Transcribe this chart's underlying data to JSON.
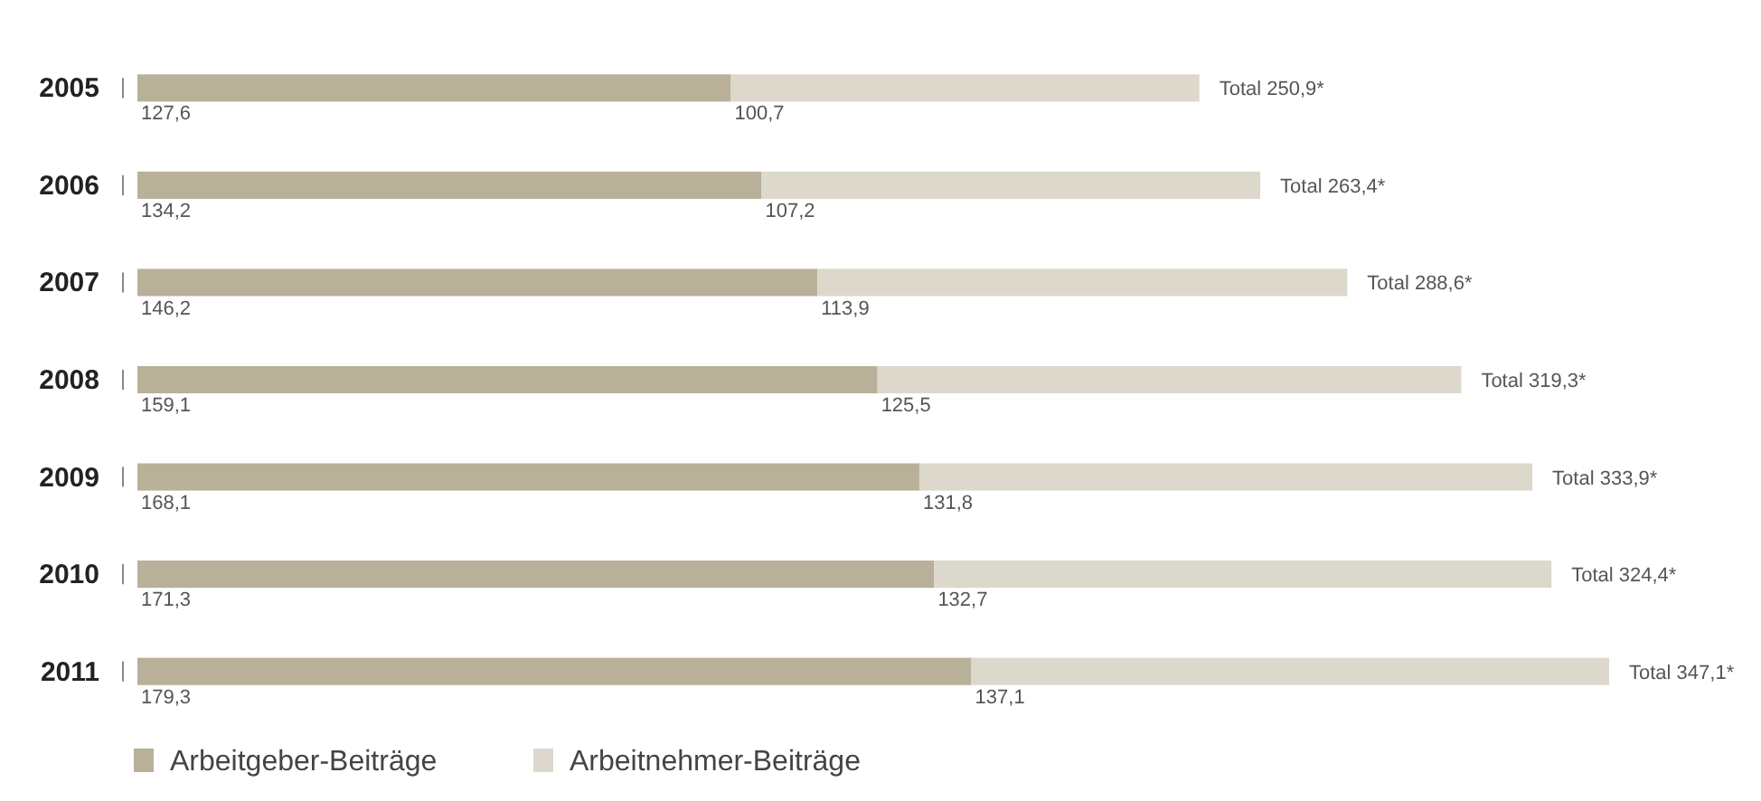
{
  "chart_data": {
    "type": "bar",
    "orientation": "horizontal",
    "stacked": true,
    "categories": [
      "2005",
      "2006",
      "2007",
      "2008",
      "2009",
      "2010",
      "2011"
    ],
    "series": [
      {
        "name": "Arbeitgeber-Beiträge",
        "color": "#b8b098",
        "values": [
          127.6,
          134.2,
          146.2,
          159.1,
          168.1,
          171.3,
          179.3
        ],
        "value_labels": [
          "127,6",
          "134,2",
          "146,2",
          "159,1",
          "168,1",
          "171,3",
          "179,3"
        ]
      },
      {
        "name": "Arbeitnehmer-Beiträge",
        "color": "#ddd8cc",
        "values": [
          100.7,
          107.2,
          113.9,
          125.5,
          131.8,
          132.7,
          137.1
        ],
        "value_labels": [
          "100,7",
          "107,2",
          "113,9",
          "125,5",
          "131,8",
          "132,7",
          "137,1"
        ]
      }
    ],
    "totals": [
      "Total 250,9*",
      "Total 263,4*",
      "Total 288,6*",
      "Total 319,3*",
      "Total 333,9*",
      "Total 324,4*",
      "Total 347,1*"
    ],
    "legend": "bottom"
  }
}
